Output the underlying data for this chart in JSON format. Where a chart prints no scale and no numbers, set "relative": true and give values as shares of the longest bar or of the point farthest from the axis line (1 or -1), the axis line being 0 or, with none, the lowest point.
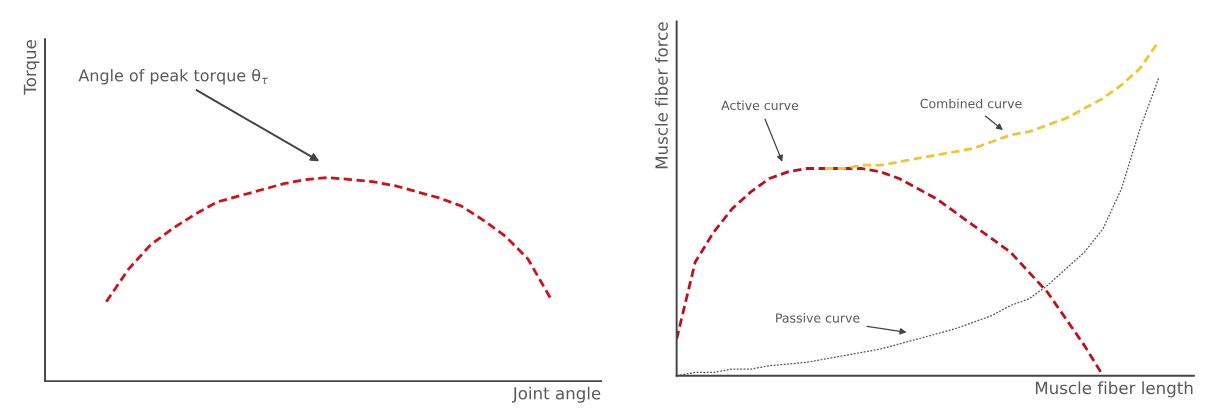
{
  "chart_data": [
    {
      "type": "line",
      "relative": true,
      "xlabel": "Joint angle",
      "ylabel": "Torque",
      "tick_labels": false,
      "legend": false,
      "annotations": [
        "Angle of peak torque θ$_{τ}$"
      ],
      "categories": [
        null,
        null,
        null,
        null,
        null,
        null,
        null,
        null,
        null,
        null,
        null,
        null,
        null,
        null,
        null,
        null,
        null,
        null,
        null,
        null,
        null
      ],
      "series": [
        {
          "color": "#d0101a",
          "line_style": "dashed",
          "values": [
            0.39,
            0.55,
            0.67,
            0.75,
            0.82,
            0.88,
            0.91,
            0.94,
            0.97,
            0.99,
            1.0,
            0.99,
            0.98,
            0.96,
            0.93,
            0.9,
            0.86,
            0.79,
            0.71,
            0.6,
            0.41
          ]
        }
      ]
    },
    {
      "type": "line",
      "relative": true,
      "xlabel": "Muscle fiber length",
      "ylabel": "Muscle fiber force",
      "tick_labels": false,
      "legend": false,
      "categories": [
        null,
        null,
        null,
        null,
        null,
        null,
        null,
        null,
        null,
        null,
        null,
        null,
        null,
        null,
        null,
        null,
        null,
        null,
        null,
        null,
        null,
        null,
        null,
        null,
        null,
        null,
        null
      ],
      "series": [
        {
          "name": "Active curve",
          "color": "#c00f1c",
          "line_style": "dashed",
          "values": [
            0.11,
            0.34,
            0.43,
            0.5,
            0.55,
            0.59,
            0.61,
            0.62,
            0.62,
            0.62,
            0.62,
            0.61,
            0.59,
            0.56,
            0.53,
            0.49,
            0.45,
            0.41,
            0.37,
            0.31,
            0.25,
            0.17,
            0.09,
            0.0,
            null,
            null,
            null
          ]
        },
        {
          "name": "Combined curve",
          "color": "#f2c530",
          "line_style": "dashed",
          "values": [
            null,
            null,
            null,
            null,
            null,
            null,
            null,
            null,
            0.62,
            0.62,
            0.63,
            0.63,
            0.64,
            0.65,
            0.66,
            0.67,
            0.68,
            0.7,
            0.72,
            0.73,
            0.75,
            0.77,
            0.8,
            0.83,
            0.87,
            0.92,
            1.0
          ]
        },
        {
          "name": "Passive curve",
          "color": "#555555",
          "line_style": "dotted",
          "values": [
            0.0,
            0.01,
            0.01,
            0.02,
            0.02,
            0.03,
            0.035,
            0.04,
            0.05,
            0.06,
            0.07,
            0.08,
            0.095,
            0.11,
            0.125,
            0.14,
            0.16,
            0.18,
            0.21,
            0.23,
            0.27,
            0.32,
            0.37,
            0.44,
            0.56,
            0.74,
            0.89
          ]
        }
      ]
    }
  ]
}
